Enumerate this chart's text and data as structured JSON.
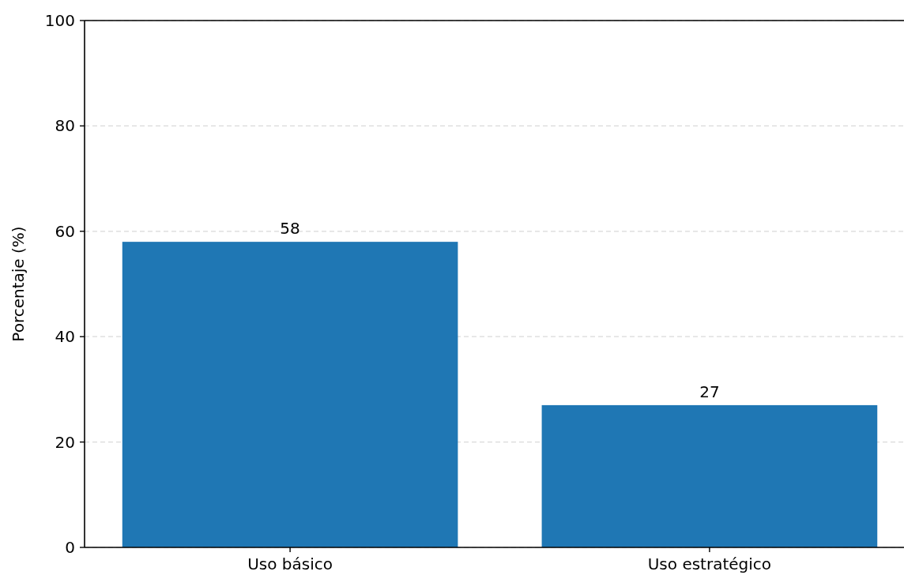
{
  "chart_data": {
    "type": "bar",
    "ylabel": "Porcentaje (%)",
    "categories": [
      "Uso básico",
      "Uso estratégico"
    ],
    "values": [
      58,
      27
    ],
    "color": "#1f77b4",
    "ylim": [
      0,
      100
    ],
    "yticks": [
      0,
      20,
      40,
      60,
      80,
      100
    ],
    "grid": "y",
    "data_labels": true
  }
}
